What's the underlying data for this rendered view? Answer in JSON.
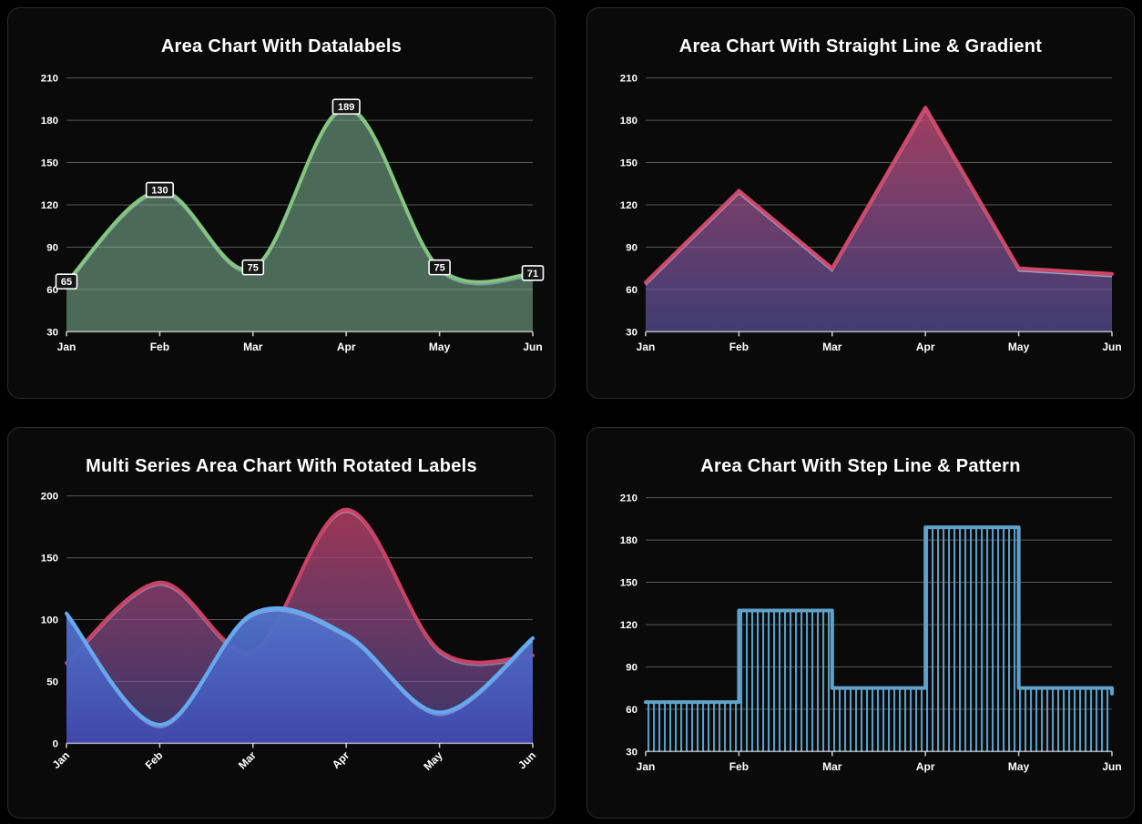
{
  "page": {
    "background": "#000000",
    "panel_background": "#0a0a0b",
    "panel_border": "#2c2c31",
    "text_color": "#ffffff",
    "gridline_color": "rgba(255,255,255,0.32)",
    "axis_line_color": "rgba(255,255,255,0.62)",
    "tick_color": "rgba(255,255,255,0.75)"
  },
  "chart_data": [
    {
      "type": "area",
      "curve": "smooth",
      "title": "Area Chart With Datalabels",
      "categories": [
        "Jan",
        "Feb",
        "Mar",
        "Apr",
        "May",
        "Jun"
      ],
      "values": [
        65,
        130,
        75,
        189,
        75,
        71
      ],
      "y_ticks": [
        30,
        60,
        90,
        120,
        150,
        180,
        210
      ],
      "ylim": [
        30,
        210
      ],
      "grid": true,
      "legend": "none",
      "x_label_rotation": 0,
      "line_color": "#83c67e",
      "inner_edge_color": "rgba(160,190,220,0.6)",
      "fill": {
        "kind": "solid",
        "color": "rgba(131,186,153,0.55)"
      },
      "datalabels": {
        "enabled": true,
        "labels": [
          "65",
          "130",
          "75",
          "189",
          "75",
          "71"
        ],
        "background": "#161616",
        "border_color": "#ffffff",
        "text_color": "#ffffff"
      }
    },
    {
      "type": "area",
      "curve": "straight",
      "title": "Area Chart With Straight Line & Gradient",
      "categories": [
        "Jan",
        "Feb",
        "Mar",
        "Apr",
        "May",
        "Jun"
      ],
      "values": [
        65,
        130,
        75,
        189,
        75,
        71
      ],
      "y_ticks": [
        30,
        60,
        90,
        120,
        150,
        180,
        210
      ],
      "ylim": [
        30,
        210
      ],
      "grid": true,
      "legend": "none",
      "x_label_rotation": 0,
      "line_color": "#d14768",
      "inner_edge_color": "rgba(175,190,230,0.75)",
      "fill": {
        "kind": "gradient",
        "from": "rgba(209,71,104,0.85)",
        "to": "rgba(98,92,176,0.62)"
      },
      "datalabels": {
        "enabled": false
      }
    },
    {
      "type": "area",
      "curve": "smooth",
      "title": "Multi Series Area Chart With Rotated Labels",
      "categories": [
        "Jan",
        "Feb",
        "Mar",
        "Apr",
        "May",
        "Jun"
      ],
      "series": [
        {
          "values": [
            65,
            130,
            75,
            189,
            75,
            71
          ],
          "line_color": "#cb4163",
          "inner_edge_color": "rgba(190,200,235,0.5)",
          "fill": {
            "kind": "gradient",
            "from": "rgba(203,65,99,0.8)",
            "to": "rgba(100,90,180,0.55)"
          }
        },
        {
          "values": [
            105,
            15,
            105,
            88,
            25,
            85
          ],
          "line_color": "#63aaf1",
          "inner_edge_color": "rgba(220,240,255,0.4)",
          "fill": {
            "kind": "gradient",
            "from": "rgba(96,155,233,0.95)",
            "to": "rgba(64,73,172,0.96)"
          }
        }
      ],
      "y_ticks": [
        0,
        50,
        100,
        150,
        200
      ],
      "ylim": [
        0,
        200
      ],
      "grid": true,
      "legend": "none",
      "x_label_rotation": -45,
      "datalabels": {
        "enabled": false
      }
    },
    {
      "type": "area",
      "curve": "stepline",
      "title": "Area Chart With Step Line & Pattern",
      "categories": [
        "Jan",
        "Feb",
        "Mar",
        "Apr",
        "May",
        "Jun"
      ],
      "values": [
        65,
        130,
        75,
        189,
        75,
        71
      ],
      "y_ticks": [
        30,
        60,
        90,
        120,
        150,
        180,
        210
      ],
      "ylim": [
        30,
        210
      ],
      "grid": true,
      "legend": "none",
      "x_label_rotation": 0,
      "line_color": "#5fa3ca",
      "fill": {
        "kind": "pattern",
        "pattern": "vertical-lines",
        "color": "#5fa3ca"
      },
      "datalabels": {
        "enabled": false
      }
    }
  ]
}
